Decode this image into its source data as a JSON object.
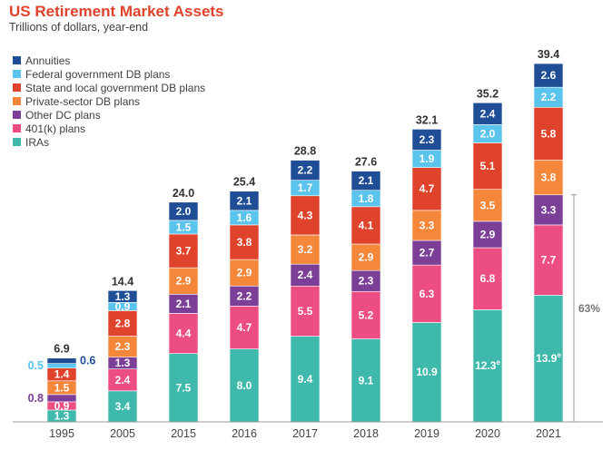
{
  "chart_data": {
    "type": "bar",
    "stacked": true,
    "title": "US Retirement Market Assets",
    "subtitle": "Trillions of dollars, year-end",
    "categories": [
      "1995",
      "2005",
      "2015",
      "2016",
      "2017",
      "2018",
      "2019",
      "2020",
      "2021"
    ],
    "totals": [
      "6.9",
      "14.4",
      "24.0",
      "25.4",
      "28.8",
      "27.6",
      "32.1",
      "35.2",
      "39.4"
    ],
    "ylim": [
      0,
      40
    ],
    "grid": false,
    "legend_position": "top-left",
    "series": [
      {
        "name": "IRAs",
        "color": "#40b9ad",
        "values": [
          1.3,
          3.4,
          7.5,
          8.0,
          9.4,
          9.1,
          10.9,
          12.3,
          13.9
        ],
        "labels": [
          "1.3",
          "3.4",
          "7.5",
          "8.0",
          "9.4",
          "9.1",
          "10.9",
          "12.3e",
          "13.9e"
        ]
      },
      {
        "name": "401(k) plans",
        "color": "#ec4d83",
        "values": [
          0.9,
          2.4,
          4.4,
          4.7,
          5.5,
          5.2,
          6.3,
          6.8,
          7.7
        ],
        "labels": [
          "0.9",
          "2.4",
          "4.4",
          "4.7",
          "5.5",
          "5.2",
          "6.3",
          "6.8",
          "7.7"
        ]
      },
      {
        "name": "Other DC plans",
        "color": "#7b3f98",
        "values": [
          0.8,
          1.3,
          2.1,
          2.2,
          2.4,
          2.3,
          2.7,
          2.9,
          3.3
        ],
        "labels": [
          "",
          "1.3",
          "2.1",
          "2.2",
          "2.4",
          "2.3",
          "2.7",
          "2.9",
          "3.3"
        ]
      },
      {
        "name": "Private-sector DB plans",
        "color": "#f5873b",
        "values": [
          1.5,
          2.3,
          2.9,
          2.9,
          3.2,
          2.9,
          3.3,
          3.5,
          3.8
        ],
        "labels": [
          "1.5",
          "2.3",
          "2.9",
          "2.9",
          "3.2",
          "2.9",
          "3.3",
          "3.5",
          "3.8"
        ]
      },
      {
        "name": "State and local government DB plans",
        "color": "#e0432b",
        "values": [
          1.4,
          2.8,
          3.7,
          3.8,
          4.3,
          4.1,
          4.7,
          5.1,
          5.8
        ],
        "labels": [
          "1.4",
          "2.8",
          "3.7",
          "3.8",
          "4.3",
          "4.1",
          "4.7",
          "5.1",
          "5.8"
        ]
      },
      {
        "name": "Federal government DB plans",
        "color": "#5bc4ec",
        "values": [
          0.5,
          0.9,
          1.5,
          1.6,
          1.7,
          1.8,
          1.9,
          2.0,
          2.2
        ],
        "labels": [
          "",
          "0.9",
          "1.5",
          "1.6",
          "1.7",
          "1.8",
          "1.9",
          "2.0",
          "2.2"
        ]
      },
      {
        "name": "Annuities",
        "color": "#1f4e96",
        "values": [
          0.6,
          1.3,
          2.0,
          2.1,
          2.2,
          2.1,
          2.3,
          2.4,
          2.6
        ],
        "labels": [
          "",
          "1.3",
          "2.0",
          "2.1",
          "2.2",
          "2.1",
          "2.3",
          "2.4",
          "2.6"
        ]
      }
    ],
    "side_labels_1995": [
      {
        "series": "Federal government DB plans",
        "text": "0.5",
        "color": "#5bc4ec",
        "side": "left"
      },
      {
        "series": "Annuities",
        "text": "0.6",
        "color": "#1f4e96",
        "side": "right"
      },
      {
        "series": "Other DC plans",
        "text": "0.8",
        "color": "#7b3f98",
        "side": "left"
      }
    ],
    "bracket_annotation": {
      "text": "63%",
      "category": "2021",
      "from_series": "IRAs",
      "to_series": "Other DC plans"
    }
  }
}
